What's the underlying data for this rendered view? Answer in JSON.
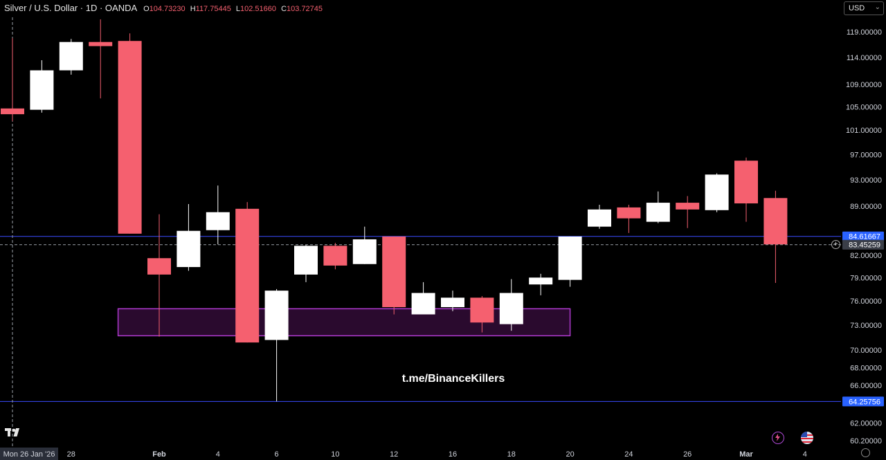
{
  "header": {
    "symbol": "Silver / U.S. Dollar · 1D · OANDA",
    "o_label": "O",
    "o_value": "104.73230",
    "h_label": "H",
    "h_value": "117.75445",
    "l_label": "L",
    "l_value": "102.51660",
    "c_label": "C",
    "c_value": "103.72745"
  },
  "currency_selector": {
    "label": "USD"
  },
  "colors": {
    "up": "#ffffff",
    "down": "#f5606f",
    "zone_border": "#b03ad0",
    "zone_fill": "#2a0a2e",
    "hline": "#3a4cff",
    "background": "#000000"
  },
  "chart_data": {
    "type": "candlestick",
    "title": "Silver / U.S. Dollar · 1D · OANDA",
    "x_tick_labels": [
      "Mon 26 Jan '26",
      "28",
      "Feb",
      "4",
      "6",
      "10",
      "12",
      "16",
      "18",
      "20",
      "24",
      "26",
      "Mar",
      "4"
    ],
    "y_tick_labels": [
      "119.00000",
      "114.00000",
      "109.00000",
      "105.00000",
      "101.00000",
      "97.00000",
      "93.00000",
      "89.00000",
      "82.00000",
      "79.00000",
      "76.00000",
      "73.00000",
      "70.00000",
      "68.00000",
      "66.00000",
      "62.00000",
      "60.20000"
    ],
    "y_scale": "log",
    "ylim": [
      59.5,
      121.5
    ],
    "candles": [
      {
        "date": "2026-01-26",
        "open": 104.73,
        "high": 117.75,
        "low": 102.52,
        "close": 103.73
      },
      {
        "date": "2026-01-27",
        "open": 104.5,
        "high": 113.5,
        "low": 104.0,
        "close": 111.6
      },
      {
        "date": "2026-01-28",
        "open": 111.6,
        "high": 117.6,
        "low": 110.8,
        "close": 117.0
      },
      {
        "date": "2026-01-29",
        "open": 117.0,
        "high": 121.5,
        "low": 106.5,
        "close": 116.2
      },
      {
        "date": "2026-01-30",
        "open": 117.2,
        "high": 118.7,
        "low": 85.0,
        "close": 85.0
      },
      {
        "date": "2026-02-02",
        "open": 81.6,
        "high": 87.8,
        "low": 71.6,
        "close": 79.4
      },
      {
        "date": "2026-02-03",
        "open": 80.4,
        "high": 89.3,
        "low": 79.9,
        "close": 85.4
      },
      {
        "date": "2026-02-04",
        "open": 85.5,
        "high": 92.1,
        "low": 83.5,
        "close": 88.1
      },
      {
        "date": "2026-02-05",
        "open": 88.6,
        "high": 89.6,
        "low": 70.9,
        "close": 70.9
      },
      {
        "date": "2026-02-06",
        "open": 71.2,
        "high": 77.5,
        "low": 64.26,
        "close": 77.3
      },
      {
        "date": "2026-02-09",
        "open": 79.4,
        "high": 83.4,
        "low": 78.4,
        "close": 83.3
      },
      {
        "date": "2026-02-10",
        "open": 83.3,
        "high": 83.7,
        "low": 80.1,
        "close": 80.6
      },
      {
        "date": "2026-02-11",
        "open": 80.8,
        "high": 86.0,
        "low": 80.8,
        "close": 84.2
      },
      {
        "date": "2026-02-12",
        "open": 84.6,
        "high": 84.6,
        "low": 74.3,
        "close": 75.2
      },
      {
        "date": "2026-02-13",
        "open": 74.3,
        "high": 78.4,
        "low": 74.3,
        "close": 77.0
      },
      {
        "date": "2026-02-16",
        "open": 75.2,
        "high": 77.3,
        "low": 74.7,
        "close": 76.4
      },
      {
        "date": "2026-02-17",
        "open": 76.4,
        "high": 76.6,
        "low": 72.1,
        "close": 73.3
      },
      {
        "date": "2026-02-18",
        "open": 73.1,
        "high": 78.8,
        "low": 72.3,
        "close": 77.0
      },
      {
        "date": "2026-02-19",
        "open": 78.1,
        "high": 79.5,
        "low": 76.7,
        "close": 79.0
      },
      {
        "date": "2026-02-20",
        "open": 78.7,
        "high": 84.6,
        "low": 77.8,
        "close": 84.6
      },
      {
        "date": "2026-02-23",
        "open": 86.0,
        "high": 89.2,
        "low": 85.7,
        "close": 88.5
      },
      {
        "date": "2026-02-24",
        "open": 88.8,
        "high": 89.2,
        "low": 85.1,
        "close": 87.2
      },
      {
        "date": "2026-02-25",
        "open": 86.7,
        "high": 91.2,
        "low": 86.5,
        "close": 89.5
      },
      {
        "date": "2026-02-26",
        "open": 89.5,
        "high": 90.5,
        "low": 85.8,
        "close": 88.5
      },
      {
        "date": "2026-02-27",
        "open": 88.4,
        "high": 94.0,
        "low": 88.1,
        "close": 93.8
      },
      {
        "date": "2026-03-02",
        "open": 96.0,
        "high": 96.5,
        "low": 86.7,
        "close": 89.4
      },
      {
        "date": "2026-03-03",
        "open": 90.2,
        "high": 91.3,
        "low": 78.3,
        "close": 83.5
      }
    ],
    "demand_zone": {
      "from": "2026-01-30",
      "to": "2026-02-20",
      "low": 71.7,
      "high": 75.0
    },
    "horizontal_lines": [
      {
        "price": 84.61667,
        "label": "84.61667",
        "style": "solid"
      },
      {
        "price": 64.25756,
        "label": "64.25756",
        "style": "solid"
      }
    ],
    "current_price": {
      "price": 83.45259,
      "label": "83.45259",
      "style": "dashed"
    },
    "crosshair_date": "Mon 26 Jan '26",
    "grid": false
  },
  "watermark": {
    "text": "t.me/BinanceKillers"
  },
  "icons": {
    "tradingview_logo": "tradingview-logo",
    "plus": "plus-circle-icon",
    "settings": "settings-icon",
    "lightning": "lightning-icon",
    "flag": "us-flag-icon"
  }
}
